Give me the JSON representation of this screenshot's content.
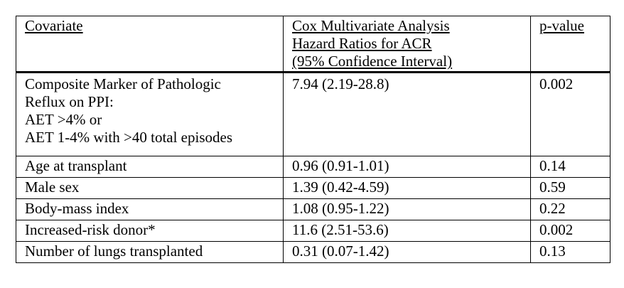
{
  "table": {
    "headers": {
      "covariate": "Covariate",
      "hazard_lines": [
        "Cox Multivariate Analysis",
        "Hazard Ratios for ACR",
        "(95% Confidence Interval)"
      ],
      "pvalue": "p-value"
    },
    "first_row": {
      "covariate_lines": [
        "Composite Marker of Pathologic",
        "Reflux on PPI:",
        "AET >4% or",
        "AET 1-4% with >40 total episodes"
      ],
      "hazard": "7.94 (2.19-28.8)",
      "pvalue": "0.002",
      "pvalue_bold": true
    },
    "rows": [
      {
        "covariate": "Age at transplant",
        "hazard": "0.96 (0.91-1.01)",
        "pvalue": "0.14"
      },
      {
        "covariate": "Male sex",
        "hazard": "1.39 (0.42-4.59)",
        "pvalue": "0.59"
      },
      {
        "covariate": "Body-mass index",
        "hazard": "1.08 (0.95-1.22)",
        "pvalue": "0.22"
      },
      {
        "covariate": "Increased-risk donor*",
        "hazard": "11.6 (2.51-53.6)",
        "pvalue": "0.002"
      },
      {
        "covariate": "Number of lungs transplanted",
        "hazard": "0.31 (0.07-1.42)",
        "pvalue": "0.13"
      }
    ]
  }
}
